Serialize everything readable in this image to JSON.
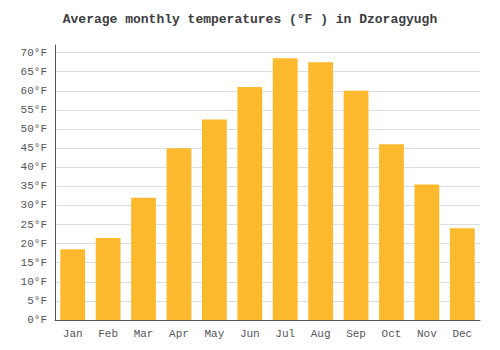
{
  "chart_data": {
    "type": "bar",
    "title": "Average monthly temperatures (°F ) in Dzoragyugh",
    "categories": [
      "Jan",
      "Feb",
      "Mar",
      "Apr",
      "May",
      "Jun",
      "Jul",
      "Aug",
      "Sep",
      "Oct",
      "Nov",
      "Dec"
    ],
    "values": [
      18.5,
      21.5,
      32.0,
      45.0,
      52.5,
      61.0,
      68.5,
      67.5,
      60.0,
      46.0,
      35.5,
      24.0
    ],
    "color": "#FDB92E",
    "ylim": [
      0,
      72
    ],
    "yticks": [
      {
        "value": 0,
        "label": "0°F"
      },
      {
        "value": 5,
        "label": "5°F"
      },
      {
        "value": 10,
        "label": "10°F"
      },
      {
        "value": 15,
        "label": "15°F"
      },
      {
        "value": 20,
        "label": "20°F"
      },
      {
        "value": 25,
        "label": "25°F"
      },
      {
        "value": 30,
        "label": "30°F"
      },
      {
        "value": 35,
        "label": "35°F"
      },
      {
        "value": 40,
        "label": "40°F"
      },
      {
        "value": 45,
        "label": "45°F"
      },
      {
        "value": 50,
        "label": "50°F"
      },
      {
        "value": 55,
        "label": "55°F"
      },
      {
        "value": 60,
        "label": "60°F"
      },
      {
        "value": 65,
        "label": "65°F"
      },
      {
        "value": 70,
        "label": "70°F"
      }
    ],
    "grid": true
  }
}
